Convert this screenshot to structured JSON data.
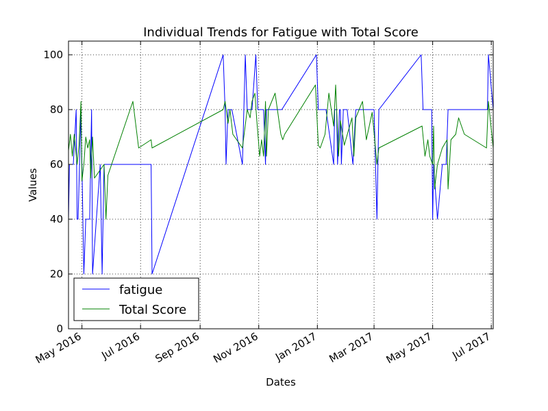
{
  "chart_data": {
    "type": "line",
    "title": "Individual Trends for Fatigue with Total Score",
    "xlabel": "Dates",
    "ylabel": "Values",
    "xlim": [
      "2016-04-17",
      "2017-07-03"
    ],
    "ylim": [
      0,
      105
    ],
    "yticks": [
      0,
      20,
      40,
      60,
      80,
      100
    ],
    "xticks": [
      {
        "date": "2016-05-01",
        "label": "May 2016"
      },
      {
        "date": "2016-07-01",
        "label": "Jul 2016"
      },
      {
        "date": "2016-09-01",
        "label": "Sep 2016"
      },
      {
        "date": "2016-11-01",
        "label": "Nov 2016"
      },
      {
        "date": "2017-01-01",
        "label": "Jan 2017"
      },
      {
        "date": "2017-03-01",
        "label": "Mar 2017"
      },
      {
        "date": "2017-05-01",
        "label": "May 2017"
      },
      {
        "date": "2017-07-01",
        "label": "Jul 2017"
      }
    ],
    "grid": true,
    "legend": "lower-left",
    "series": [
      {
        "name": "fatigue",
        "color": "#0000ff",
        "points": [
          [
            "2016-04-17",
            40
          ],
          [
            "2016-04-18",
            60
          ],
          [
            "2016-04-22",
            60
          ],
          [
            "2016-04-25",
            80
          ],
          [
            "2016-04-26",
            40
          ],
          [
            "2016-04-27",
            40
          ],
          [
            "2016-04-30",
            80
          ],
          [
            "2016-05-01",
            60
          ],
          [
            "2016-05-03",
            20
          ],
          [
            "2016-05-05",
            40
          ],
          [
            "2016-05-09",
            40
          ],
          [
            "2016-05-10",
            60
          ],
          [
            "2016-05-11",
            80
          ],
          [
            "2016-05-12",
            20
          ],
          [
            "2016-05-20",
            60
          ],
          [
            "2016-05-22",
            20
          ],
          [
            "2016-05-24",
            60
          ],
          [
            "2016-07-12",
            60
          ],
          [
            "2016-07-13",
            20
          ],
          [
            "2016-09-25",
            100
          ],
          [
            "2016-09-27",
            80
          ],
          [
            "2016-09-28",
            60
          ],
          [
            "2016-09-30",
            80
          ],
          [
            "2016-10-04",
            80
          ],
          [
            "2016-10-15",
            60
          ],
          [
            "2016-10-18",
            100
          ],
          [
            "2016-10-20",
            80
          ],
          [
            "2016-10-25",
            80
          ],
          [
            "2016-10-29",
            100
          ],
          [
            "2016-10-31",
            80
          ],
          [
            "2016-11-06",
            80
          ],
          [
            "2016-11-08",
            60
          ],
          [
            "2016-11-09",
            80
          ],
          [
            "2016-11-25",
            80
          ],
          [
            "2016-12-31",
            100
          ],
          [
            "2017-01-02",
            80
          ],
          [
            "2017-01-10",
            80
          ],
          [
            "2017-01-18",
            60
          ],
          [
            "2017-01-19",
            80
          ],
          [
            "2017-01-21",
            80
          ],
          [
            "2017-01-22",
            60
          ],
          [
            "2017-01-24",
            80
          ],
          [
            "2017-01-25",
            80
          ],
          [
            "2017-01-26",
            60
          ],
          [
            "2017-01-28",
            80
          ],
          [
            "2017-02-01",
            80
          ],
          [
            "2017-02-07",
            60
          ],
          [
            "2017-02-10",
            80
          ],
          [
            "2017-03-01",
            80
          ],
          [
            "2017-03-04",
            40
          ],
          [
            "2017-03-06",
            80
          ],
          [
            "2017-04-19",
            100
          ],
          [
            "2017-04-21",
            80
          ],
          [
            "2017-04-30",
            80
          ],
          [
            "2017-05-01",
            40
          ],
          [
            "2017-05-02",
            60
          ],
          [
            "2017-05-06",
            40
          ],
          [
            "2017-05-11",
            60
          ],
          [
            "2017-05-15",
            60
          ],
          [
            "2017-05-17",
            80
          ],
          [
            "2017-06-27",
            80
          ],
          [
            "2017-06-28",
            100
          ],
          [
            "2017-07-03",
            80
          ]
        ]
      },
      {
        "name": "Total Score",
        "color": "#008000",
        "points": [
          [
            "2016-04-17",
            65
          ],
          [
            "2016-04-19",
            71
          ],
          [
            "2016-04-21",
            63
          ],
          [
            "2016-04-23",
            71
          ],
          [
            "2016-04-26",
            60
          ],
          [
            "2016-04-28",
            67
          ],
          [
            "2016-04-30",
            83
          ],
          [
            "2016-05-01",
            54
          ],
          [
            "2016-05-03",
            60
          ],
          [
            "2016-05-05",
            70
          ],
          [
            "2016-05-07",
            66
          ],
          [
            "2016-05-09",
            69
          ],
          [
            "2016-05-10",
            55
          ],
          [
            "2016-05-12",
            70
          ],
          [
            "2016-05-14",
            55
          ],
          [
            "2016-05-24",
            60
          ],
          [
            "2016-05-26",
            40
          ],
          [
            "2016-05-28",
            56
          ],
          [
            "2016-06-23",
            83
          ],
          [
            "2016-06-29",
            66
          ],
          [
            "2016-07-12",
            69
          ],
          [
            "2016-07-13",
            66
          ],
          [
            "2016-09-25",
            80
          ],
          [
            "2016-09-27",
            83
          ],
          [
            "2016-09-30",
            75
          ],
          [
            "2016-10-02",
            80
          ],
          [
            "2016-10-05",
            71
          ],
          [
            "2016-10-15",
            66
          ],
          [
            "2016-10-20",
            80
          ],
          [
            "2016-10-23",
            77
          ],
          [
            "2016-10-25",
            83
          ],
          [
            "2016-10-28",
            86
          ],
          [
            "2016-10-30",
            76
          ],
          [
            "2016-11-02",
            63
          ],
          [
            "2016-11-04",
            69
          ],
          [
            "2016-11-06",
            63
          ],
          [
            "2016-11-08",
            83
          ],
          [
            "2016-11-09",
            63
          ],
          [
            "2016-11-11",
            80
          ],
          [
            "2016-11-18",
            86
          ],
          [
            "2016-11-24",
            71
          ],
          [
            "2016-11-26",
            69
          ],
          [
            "2016-11-28",
            71
          ],
          [
            "2016-12-30",
            89
          ],
          [
            "2017-01-02",
            67
          ],
          [
            "2017-01-04",
            66
          ],
          [
            "2017-01-07",
            69
          ],
          [
            "2017-01-09",
            71
          ],
          [
            "2017-01-13",
            86
          ],
          [
            "2017-01-18",
            74
          ],
          [
            "2017-01-20",
            89
          ],
          [
            "2017-01-23",
            63
          ],
          [
            "2017-01-25",
            76
          ],
          [
            "2017-01-29",
            67
          ],
          [
            "2017-02-06",
            77
          ],
          [
            "2017-02-08",
            63
          ],
          [
            "2017-02-10",
            77
          ],
          [
            "2017-02-17",
            83
          ],
          [
            "2017-02-21",
            69
          ],
          [
            "2017-02-27",
            79
          ],
          [
            "2017-03-04",
            60
          ],
          [
            "2017-03-06",
            66
          ],
          [
            "2017-04-20",
            74
          ],
          [
            "2017-04-23",
            63
          ],
          [
            "2017-04-26",
            69
          ],
          [
            "2017-04-28",
            63
          ],
          [
            "2017-05-01",
            60
          ],
          [
            "2017-05-02",
            74
          ],
          [
            "2017-05-03",
            51
          ],
          [
            "2017-05-06",
            60
          ],
          [
            "2017-05-11",
            66
          ],
          [
            "2017-05-16",
            69
          ],
          [
            "2017-05-17",
            51
          ],
          [
            "2017-05-20",
            69
          ],
          [
            "2017-05-25",
            71
          ],
          [
            "2017-05-28",
            77
          ],
          [
            "2017-06-03",
            71
          ],
          [
            "2017-06-26",
            66
          ],
          [
            "2017-06-28",
            83
          ],
          [
            "2017-07-03",
            66
          ]
        ]
      }
    ]
  }
}
